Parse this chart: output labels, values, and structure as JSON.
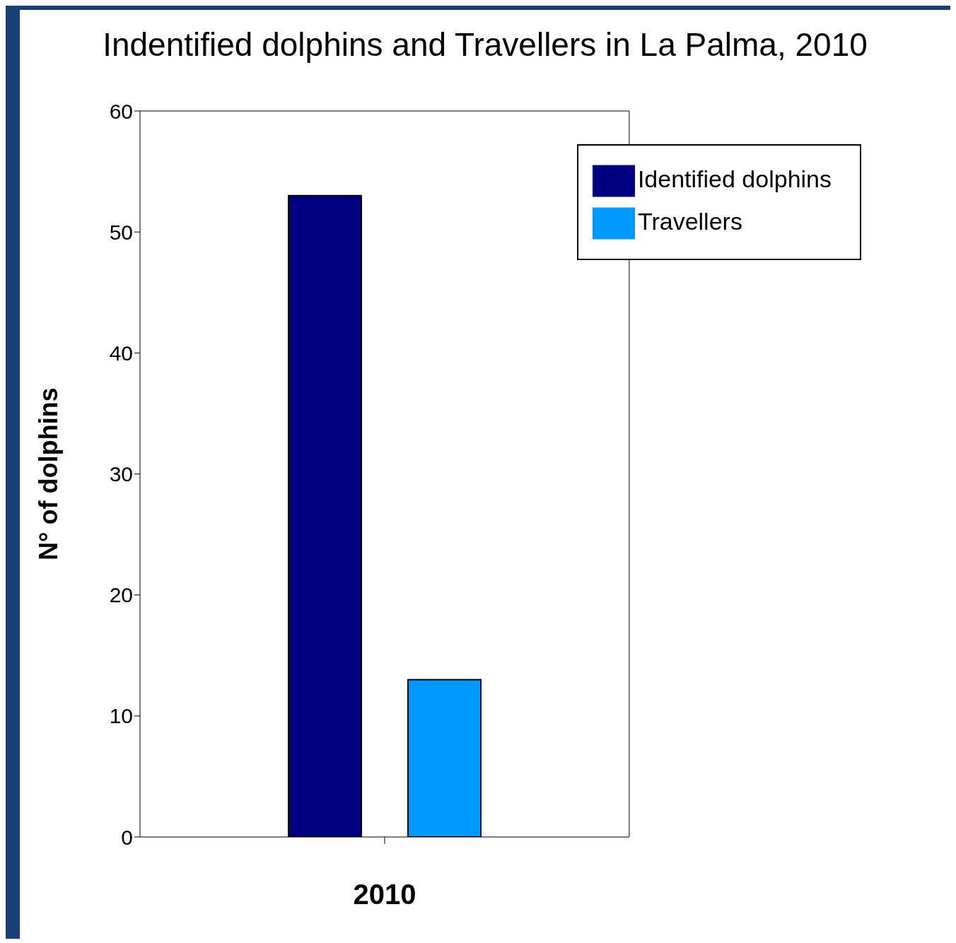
{
  "chart_data": {
    "type": "bar",
    "title": "Indentified dolphins and Travellers in La Palma, 2010",
    "ylabel": "N° of dolphins",
    "categories": [
      "2010"
    ],
    "series": [
      {
        "name": "Identified dolphins",
        "color": "#000080",
        "values": [
          53
        ]
      },
      {
        "name": "Travellers",
        "color": "#0099ff",
        "values": [
          13
        ]
      }
    ],
    "ylim": [
      0,
      60
    ],
    "yticks": [
      0,
      10,
      20,
      30,
      40,
      50,
      60
    ],
    "grid": false,
    "legend": "top right"
  }
}
